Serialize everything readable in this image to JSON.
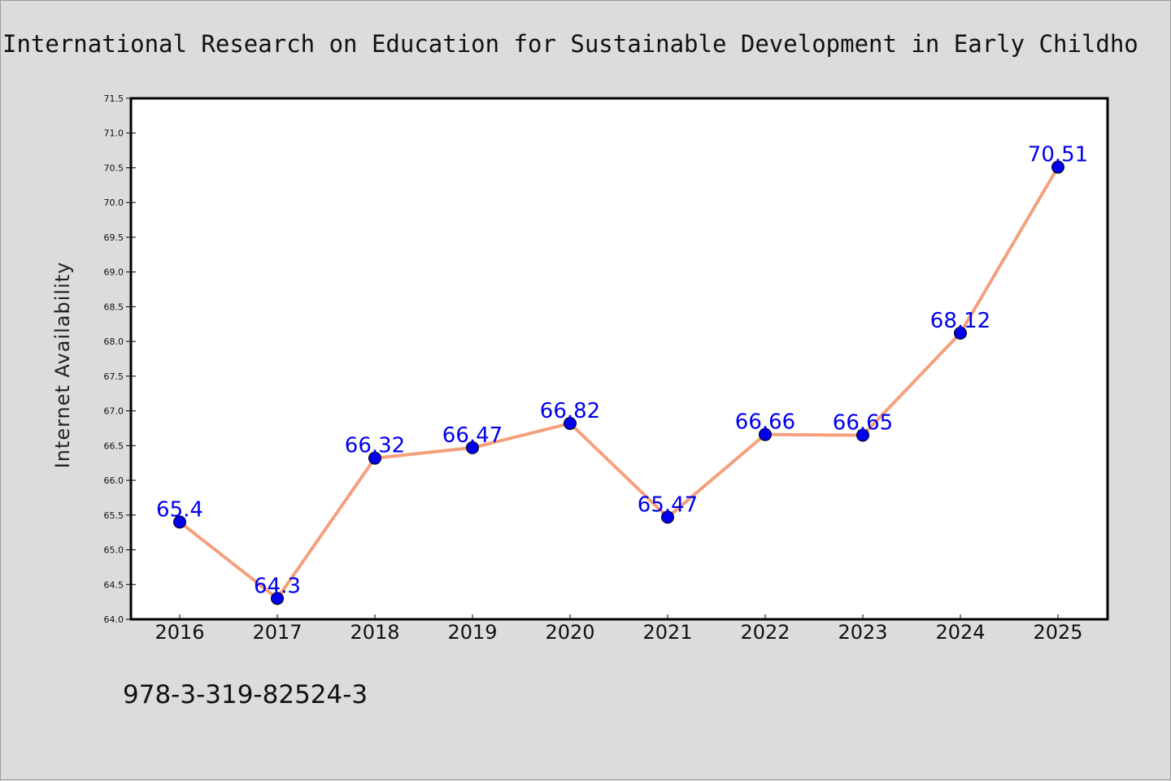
{
  "figure": {
    "background": "#dcdcdc",
    "footer_text": "978-3-319-82524-3"
  },
  "chart_data": {
    "type": "line",
    "title": "International Research on Education for Sustainable Development in Early Childho",
    "xlabel": "",
    "ylabel": "Internet Availability",
    "categories": [
      "2016",
      "2017",
      "2018",
      "2019",
      "2020",
      "2021",
      "2022",
      "2023",
      "2024",
      "2025"
    ],
    "series": [
      {
        "values": [
          65.4,
          64.3,
          66.32,
          66.47,
          66.82,
          65.47,
          66.66,
          66.65,
          68.12,
          70.51
        ],
        "labels": [
          "65.4",
          "64.3",
          "66.32",
          "66.47",
          "66.82",
          "65.47",
          "66.66",
          "66.65",
          "68.12",
          "70.51"
        ],
        "line_color": "#f4a07c",
        "marker_color": "#0000ee"
      }
    ],
    "ylim": [
      64.0,
      71.5
    ],
    "yticks": [
      "64.0",
      "64.5",
      "65.0",
      "65.5",
      "66.0",
      "66.5",
      "67.0",
      "67.5",
      "68.0",
      "68.5",
      "69.0",
      "69.5",
      "70.0",
      "70.5",
      "71.0",
      "71.5"
    ],
    "grid": false,
    "legend": "none",
    "plot_background": "#ffffff"
  }
}
